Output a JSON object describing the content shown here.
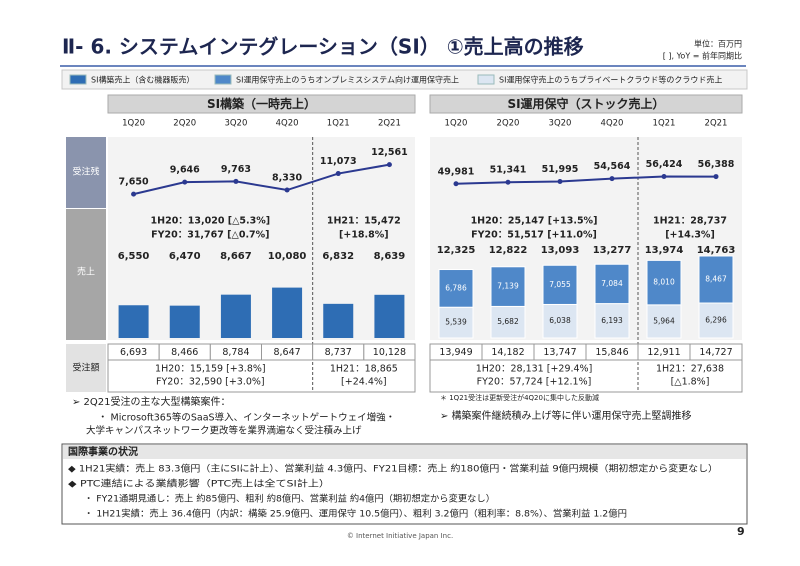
{
  "header": {
    "title": "Ⅱ- 6.  システムインテグレーション（SI）  ①売上高の推移",
    "unit": "単位：百万円",
    "note": "[ ], YoY = 前年同期比"
  },
  "chart_data": [
    {
      "type": "bar",
      "title": "SI構築（一時売上）",
      "categories": [
        "1Q20",
        "2Q20",
        "3Q20",
        "4Q20",
        "1Q21",
        "2Q21"
      ],
      "backlog": {
        "label": "受注残",
        "color": "#2b3990",
        "ylim": [
          0,
          15000
        ],
        "values": [
          7650,
          9646,
          9763,
          8330,
          11073,
          12561
        ],
        "value_labels": [
          "7,650",
          "9,646",
          "9,763",
          "8,330",
          "11,073",
          "12,561"
        ]
      },
      "sales_label": "売上",
      "ylim": [
        0,
        20000
      ],
      "series": [
        {
          "name": "SI構築売上（含む機器販売）",
          "color": "#2e6db4",
          "values": [
            6550,
            6470,
            8667,
            10080,
            6832,
            8639
          ],
          "value_labels": [
            "6,550",
            "6,470",
            "8,667",
            "10,080",
            "6,832",
            "8,639"
          ]
        }
      ],
      "annotations": [
        "1H20：13,020 [△5.3%]",
        "FY20：31,767 [△0.7%]",
        "1H21：15,472",
        "[+18.8%]"
      ],
      "orders": {
        "label": "受注額",
        "values": [
          "6,693",
          "8,466",
          "8,784",
          "8,647",
          "8,737",
          "10,128"
        ],
        "notes": [
          "1H20：15,159 [+3.8%]",
          "FY20：32,590 [+3.0%]",
          "1H21：18,865",
          "[+24.4%]"
        ]
      }
    },
    {
      "type": "stacked_bar",
      "title": "SI運用保守（ストック売上）",
      "categories": [
        "1Q20",
        "2Q20",
        "3Q20",
        "4Q20",
        "1Q21",
        "2Q21"
      ],
      "backlog": {
        "color": "#2b3990",
        "ylim": [
          0,
          80000
        ],
        "values": [
          49981,
          51341,
          51995,
          54564,
          56424,
          56388
        ],
        "value_labels": [
          "49,981",
          "51,341",
          "51,995",
          "54,564",
          "56,424",
          "56,388"
        ]
      },
      "ylim": [
        0,
        18000
      ],
      "series": [
        {
          "name": "SI運用保守売上のうちプライベートクラウド等のクラウド売上",
          "color": "#dce6f2",
          "values": [
            5539,
            5682,
            6038,
            6193,
            5964,
            6296
          ],
          "value_labels": [
            "5,539",
            "5,682",
            "6,038",
            "6,193",
            "5,964",
            "6,296"
          ]
        },
        {
          "name": "SI運用保守売上のうちオンプレミスシステム向け運用保守売上",
          "color": "#4f88c9",
          "values": [
            6786,
            7139,
            7055,
            7084,
            8010,
            8467
          ],
          "value_labels": [
            "6,786",
            "7,139",
            "7,055",
            "7,084",
            "8,010",
            "8,467"
          ]
        }
      ],
      "totals": [
        "12,325",
        "12,822",
        "13,093",
        "13,277",
        "13,974",
        "14,763"
      ],
      "annotations": [
        "1H20：25,147 [+13.5%]",
        "FY20：51,517 [+11.0%]",
        "1H21：28,737",
        "[+14.3%]"
      ],
      "orders": {
        "values": [
          "13,949",
          "14,182",
          "13,747",
          "15,846",
          "12,911",
          "14,727"
        ],
        "notes": [
          "1H20：28,131 [+29.4%]",
          "FY20：57,724 [+12.1%]",
          "1H21：27,638",
          "[△1.8%]"
        ]
      }
    }
  ],
  "notes": {
    "left": [
      "➢  2Q21受注の主な大型構築案件：",
      "・  Microsoft365等のSaaS導入、インターネットゲートウェイ増強・",
      "大学キャンパスネットワーク更改等を業界満遍なく受注積み上げ"
    ],
    "right": [
      "＊ 1Q21受注は更新受注が4Q20に集中した反動減",
      "➢  構築案件継続積み上げ等に伴い運用保守売上堅調推移"
    ]
  },
  "intl_box": {
    "title": "国際事業の状況",
    "items": [
      "◆ 1H21実績：売上 83.3億円（主にSIに計上）、営業利益 4.3億円、FY21目標：売上 約180億円・営業利益 9億円規模（期初想定から変更なし）",
      "◆ PTC連結による業績影響（PTC売上は全てSI計上）",
      "・ FY21通期見通し：売上 約85億円、粗利 約8億円、営業利益 約4億円（期初想定から変更なし）",
      "・ 1H21実績：売上 36.4億円（内訳：構築 25.9億円、運用保守 10.5億円）、粗利 3.2億円（粗利率：8.8%）、営業利益 1.2億円"
    ]
  },
  "footer": {
    "copyright": "© Internet Initiative Japan Inc.",
    "page": "9"
  }
}
